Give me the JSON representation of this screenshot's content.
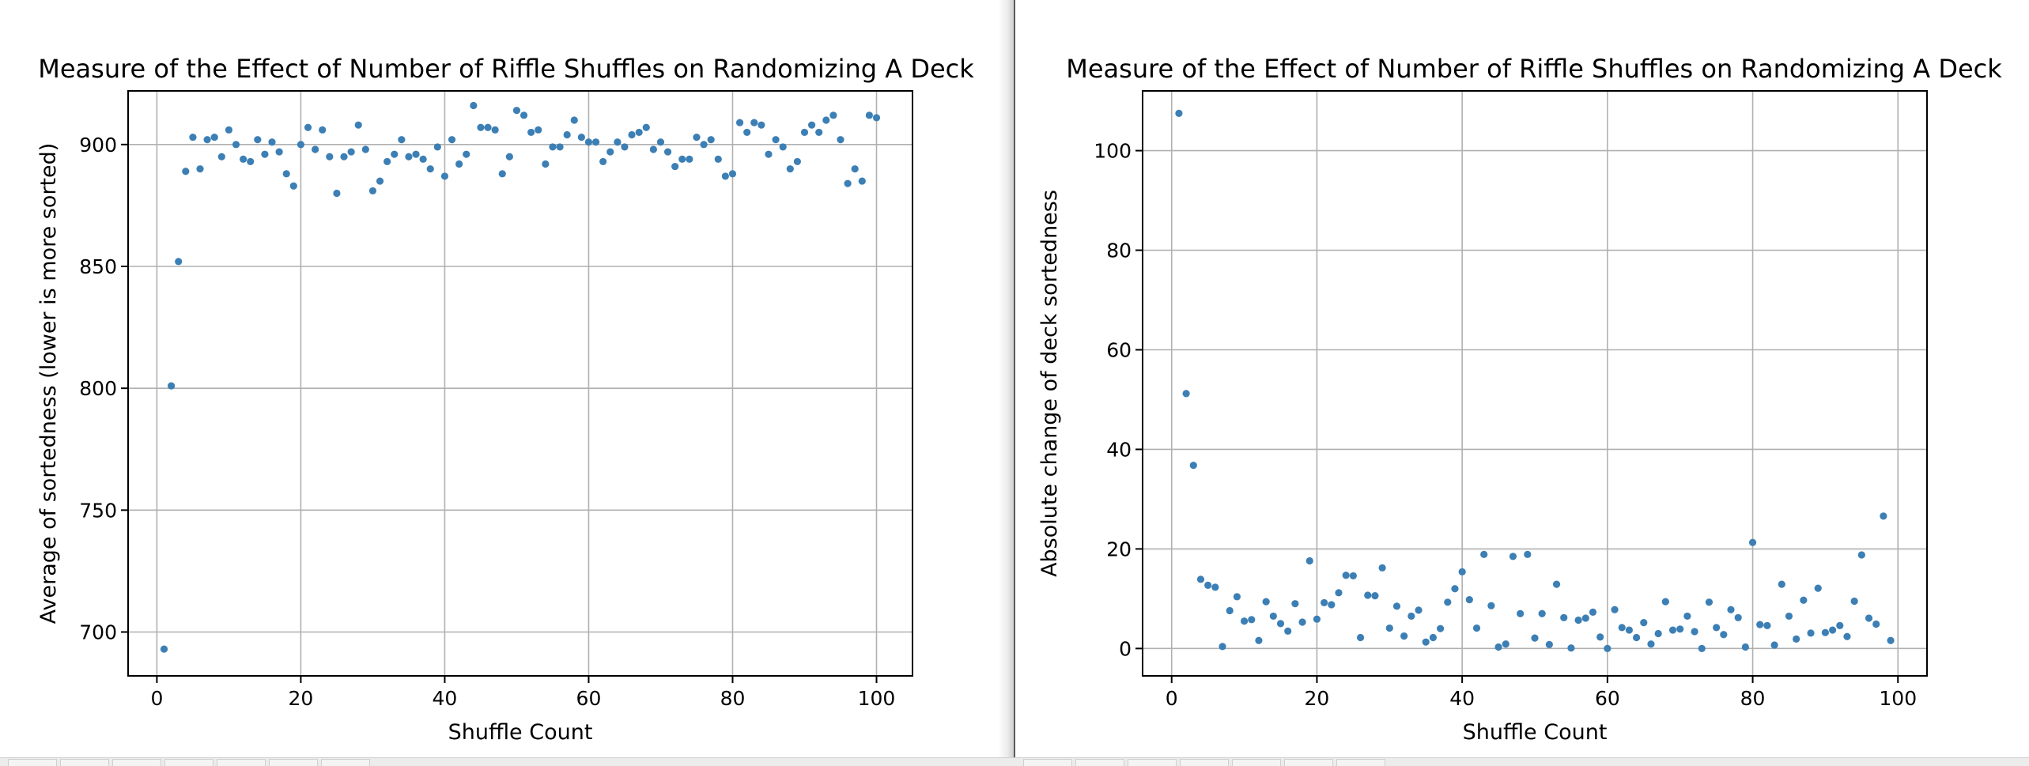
{
  "chart_data": [
    {
      "type": "scatter",
      "title": "Measure of the Effect of Number of Riffle Shuffles on Randomizing A Deck",
      "xlabel": "Shuffle Count",
      "ylabel": "Average of sortedness (lower is more sorted)",
      "xlim": [
        -4,
        105
      ],
      "ylim": [
        682,
        922
      ],
      "xticks": [
        0,
        20,
        40,
        60,
        80,
        100
      ],
      "yticks": [
        700,
        750,
        800,
        850,
        900
      ],
      "grid": true,
      "point_color": "#3c7fb5",
      "x": [
        1,
        2,
        3,
        4,
        5,
        6,
        7,
        8,
        9,
        10,
        11,
        12,
        13,
        14,
        15,
        16,
        17,
        18,
        19,
        20,
        21,
        22,
        23,
        24,
        25,
        26,
        27,
        28,
        29,
        30,
        31,
        32,
        33,
        34,
        35,
        36,
        37,
        38,
        39,
        40,
        41,
        42,
        43,
        44,
        45,
        46,
        47,
        48,
        49,
        50,
        51,
        52,
        53,
        54,
        55,
        56,
        57,
        58,
        59,
        60,
        61,
        62,
        63,
        64,
        65,
        66,
        67,
        68,
        69,
        70,
        71,
        72,
        73,
        74,
        75,
        76,
        77,
        78,
        79,
        80,
        81,
        82,
        83,
        84,
        85,
        86,
        87,
        88,
        89,
        90,
        91,
        92,
        93,
        94,
        95,
        96,
        97,
        98,
        99,
        100
      ],
      "y": [
        693,
        801,
        852,
        889,
        903,
        890,
        902,
        903,
        895,
        906,
        900,
        894,
        893,
        902,
        896,
        901,
        897,
        888,
        883,
        900,
        907,
        898,
        906,
        895,
        880,
        895,
        897,
        908,
        898,
        881,
        885,
        893,
        896,
        902,
        895,
        896,
        894,
        890,
        899,
        887,
        902,
        892,
        896,
        916,
        907,
        907,
        906,
        888,
        895,
        914,
        912,
        905,
        906,
        892,
        899,
        899,
        904,
        910,
        903,
        901,
        901,
        893,
        897,
        901,
        899,
        904,
        905,
        907,
        898,
        901,
        897,
        891,
        894,
        894,
        903,
        900,
        902,
        894,
        887,
        888,
        909,
        905,
        909,
        908,
        896,
        902,
        899,
        890,
        893,
        905,
        908,
        905,
        910,
        912,
        902,
        884,
        890,
        885,
        912,
        911
      ]
    },
    {
      "type": "scatter",
      "title": "Measure of the Effect of Number of Riffle Shuffles on Randomizing A Deck",
      "xlabel": "Shuffle Count",
      "ylabel": "Absolute change of deck sortedness",
      "xlim": [
        -4,
        104
      ],
      "ylim": [
        -5.5,
        112
      ],
      "xticks": [
        0,
        20,
        40,
        60,
        80,
        100
      ],
      "yticks": [
        0,
        20,
        40,
        60,
        80,
        100
      ],
      "grid": true,
      "point_color": "#3c7fb5",
      "x": [
        1,
        2,
        3,
        4,
        5,
        6,
        7,
        8,
        9,
        10,
        11,
        12,
        13,
        14,
        15,
        16,
        17,
        18,
        19,
        20,
        21,
        22,
        23,
        24,
        25,
        26,
        27,
        28,
        29,
        30,
        31,
        32,
        33,
        34,
        35,
        36,
        37,
        38,
        39,
        40,
        41,
        42,
        43,
        44,
        45,
        46,
        47,
        48,
        49,
        50,
        51,
        52,
        53,
        54,
        55,
        56,
        57,
        58,
        59,
        60,
        61,
        62,
        63,
        64,
        65,
        66,
        67,
        68,
        69,
        70,
        71,
        72,
        73,
        74,
        75,
        76,
        77,
        78,
        79,
        80,
        81,
        82,
        83,
        84,
        85,
        86,
        87,
        88,
        89,
        90,
        91,
        92,
        93,
        94,
        95,
        96,
        97,
        98,
        99
      ],
      "y": [
        107.5,
        51.2,
        36.8,
        13.9,
        12.7,
        12.3,
        0.4,
        7.6,
        10.4,
        5.5,
        5.8,
        1.6,
        9.4,
        6.5,
        5.0,
        3.5,
        9.0,
        5.3,
        17.6,
        5.9,
        9.2,
        8.8,
        11.2,
        14.7,
        14.6,
        2.2,
        10.7,
        10.6,
        16.2,
        4.1,
        8.5,
        2.5,
        6.5,
        7.7,
        1.3,
        2.2,
        4.0,
        9.3,
        12.0,
        15.4,
        9.8,
        4.1,
        18.9,
        8.6,
        0.3,
        0.9,
        18.5,
        7.0,
        18.9,
        2.1,
        7.0,
        0.8,
        12.9,
        6.2,
        0.1,
        5.7,
        6.1,
        7.3,
        2.3,
        0.0,
        7.8,
        4.2,
        3.7,
        2.2,
        5.2,
        0.9,
        3.0,
        9.4,
        3.7,
        3.9,
        6.5,
        3.4,
        0.0,
        9.3,
        4.2,
        2.8,
        7.8,
        6.2,
        0.3,
        21.3,
        4.8,
        4.6,
        0.7,
        12.9,
        6.5,
        1.9,
        9.7,
        3.1,
        12.1,
        3.2,
        3.7,
        4.6,
        2.4,
        9.5,
        18.8,
        6.1,
        4.9,
        26.6,
        1.6
      ]
    }
  ]
}
